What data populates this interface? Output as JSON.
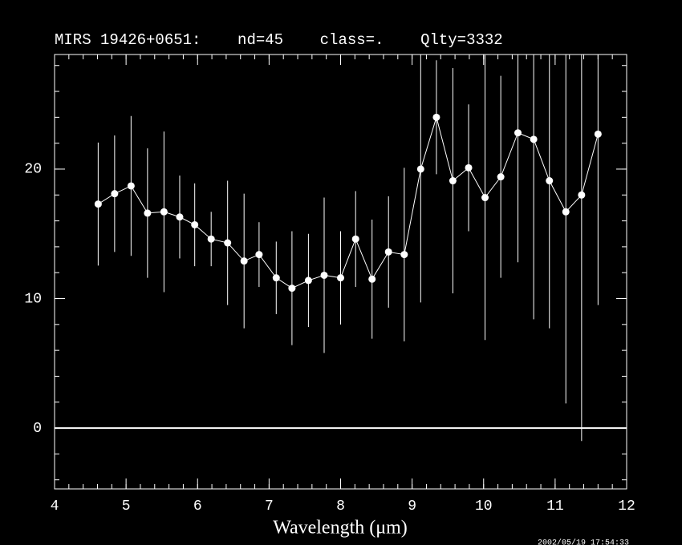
{
  "chart_data": {
    "type": "errorbar",
    "title": "MIRS 19426+0651:    nd=45    class=.    Qlty=3332",
    "xlabel": "Wavelength (μm)",
    "footer": "2002/05/19 17:54:33",
    "color": "#ffffff",
    "background": "#000000",
    "zero_line": true,
    "xlim": [
      4,
      12
    ],
    "xticks": [
      4,
      5,
      6,
      7,
      8,
      9,
      10,
      11,
      12
    ],
    "xminor_step": 0.2,
    "ylim": [
      -4.7,
      28.85
    ],
    "yticks": [
      0,
      10,
      20
    ],
    "yminor_step": 2,
    "x": [
      4.61,
      4.84,
      5.07,
      5.3,
      5.53,
      5.75,
      5.96,
      6.19,
      6.42,
      6.65,
      6.86,
      7.1,
      7.32,
      7.55,
      7.77,
      8.0,
      8.21,
      8.44,
      8.67,
      8.89,
      9.12,
      9.34,
      9.57,
      9.79,
      10.02,
      10.24,
      10.48,
      10.7,
      10.92,
      11.15,
      11.37,
      11.6
    ],
    "values": [
      17.3,
      18.1,
      18.7,
      16.6,
      16.7,
      16.3,
      15.7,
      14.6,
      14.3,
      12.9,
      13.4,
      11.6,
      10.8,
      11.4,
      11.8,
      11.6,
      14.6,
      11.5,
      13.6,
      13.4,
      20.0,
      24.0,
      19.1,
      20.1,
      17.8,
      19.4,
      22.8,
      22.3,
      19.1,
      16.7,
      18.0,
      22.7
    ],
    "errors": [
      4.75,
      4.5,
      5.4,
      5.0,
      6.2,
      3.2,
      3.2,
      2.1,
      4.8,
      5.2,
      2.5,
      2.8,
      4.4,
      3.6,
      6.0,
      3.6,
      3.7,
      4.6,
      4.3,
      6.7,
      10.3,
      4.4,
      8.7,
      4.9,
      11.0,
      7.8,
      10.0,
      13.9,
      11.4,
      14.8,
      19.0,
      13.2
    ]
  }
}
